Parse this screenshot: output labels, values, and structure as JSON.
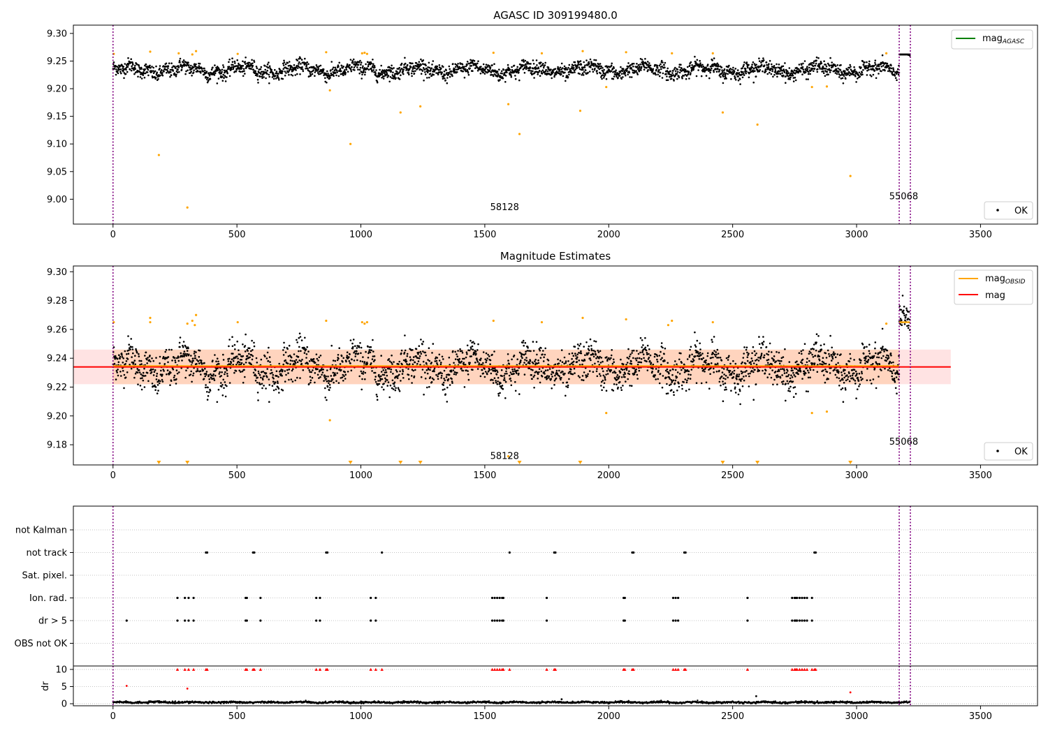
{
  "figure": {
    "legend_ok": "OK",
    "lim": {
      "xmin": -160,
      "xmax": 3730
    }
  },
  "colors": {
    "ok": "#000000",
    "out": "#ffa500",
    "agasc": "#008000",
    "obsid": "#ffa500",
    "mag": "#ff0000",
    "vline": "#800080",
    "band": "#ff9999",
    "band_inner": "#ffc8a0",
    "dr_flag": "#ff0000",
    "grid": "#b0b0b0"
  },
  "chart_data": [
    {
      "type": "scatter",
      "title": "AGASC ID 309199480.0",
      "xlabel": "",
      "ylabel": "",
      "xlim": [
        -160,
        3730
      ],
      "ylim": [
        8.955,
        9.315
      ],
      "xticks": [
        0,
        500,
        1000,
        1500,
        2000,
        2500,
        3000,
        3500
      ],
      "yticks": [
        9.0,
        9.05,
        9.1,
        9.15,
        9.2,
        9.25,
        9.3
      ],
      "ytick_labels": [
        "9.00",
        "9.05",
        "9.10",
        "9.15",
        "9.20",
        "9.25",
        "9.30"
      ],
      "grid": false,
      "legends": [
        "upper right: mag_AGASC",
        "lower right: OK"
      ],
      "legend_lines": [
        {
          "label": "mag",
          "sub": "AGASC",
          "color": "#008000"
        }
      ],
      "series_summary": {
        "name": "OK",
        "x_range": [
          0,
          3215
        ],
        "baseline": 9.234,
        "spread": 0.012
      },
      "annotations": [
        {
          "text": "58128",
          "x": 1580,
          "y": 8.98
        },
        {
          "text": "55068",
          "x": 3190,
          "y": 9.0
        }
      ],
      "vlines": [
        0,
        3172,
        3217
      ],
      "agasc_mag": 9.266,
      "outliers": [
        [
          3,
          9.263
        ],
        [
          150,
          9.267
        ],
        [
          185,
          9.08
        ],
        [
          265,
          9.264
        ],
        [
          300,
          8.985
        ],
        [
          320,
          9.262
        ],
        [
          335,
          9.268
        ],
        [
          503,
          9.263
        ],
        [
          860,
          9.266
        ],
        [
          875,
          9.197
        ],
        [
          958,
          9.1
        ],
        [
          1005,
          9.264
        ],
        [
          1015,
          9.265
        ],
        [
          1025,
          9.263
        ],
        [
          1160,
          9.157
        ],
        [
          1240,
          9.168
        ],
        [
          1535,
          9.265
        ],
        [
          1595,
          9.172
        ],
        [
          1640,
          9.118
        ],
        [
          1730,
          9.264
        ],
        [
          1885,
          9.16
        ],
        [
          1895,
          9.268
        ],
        [
          1990,
          9.203
        ],
        [
          2070,
          9.266
        ],
        [
          2255,
          9.264
        ],
        [
          2420,
          9.264
        ],
        [
          2460,
          9.157
        ],
        [
          2600,
          9.135
        ],
        [
          2820,
          9.203
        ],
        [
          2880,
          9.204
        ],
        [
          2975,
          9.042
        ],
        [
          3120,
          9.264
        ]
      ]
    },
    {
      "type": "scatter",
      "title": "Magnitude Estimates",
      "xlabel": "",
      "ylabel": "",
      "xlim": [
        -160,
        3730
      ],
      "ylim": [
        9.166,
        9.304
      ],
      "xticks": [
        0,
        500,
        1000,
        1500,
        2000,
        2500,
        3000,
        3500
      ],
      "yticks": [
        9.18,
        9.2,
        9.22,
        9.24,
        9.26,
        9.28,
        9.3
      ],
      "ytick_labels": [
        "9.18",
        "9.20",
        "9.22",
        "9.24",
        "9.26",
        "9.28",
        "9.30"
      ],
      "grid": false,
      "legends": [
        "upper right: mag_OBSID, mag",
        "lower right: OK"
      ],
      "legend_lines": [
        {
          "label": "mag",
          "sub": "OBSID",
          "color": "#ffa500"
        },
        {
          "label": "mag",
          "sub": "",
          "color": "#ff0000"
        }
      ],
      "series_summary": {
        "name": "OK",
        "x_range": [
          0,
          3215
        ],
        "baseline": 9.234,
        "spread": 0.012
      },
      "annotations": [
        {
          "text": "58128",
          "x": 1580,
          "y": 9.17
        },
        {
          "text": "55068",
          "x": 3190,
          "y": 9.18
        }
      ],
      "vlines": [
        0,
        3172,
        3217
      ],
      "mag_line": {
        "value": 9.234,
        "x_range": [
          -160,
          3380
        ]
      },
      "mag_band": {
        "low": 9.222,
        "high": 9.246,
        "x_range": [
          -160,
          3380
        ]
      },
      "mag_band_inner": {
        "low": 9.222,
        "high": 9.246,
        "x_range": [
          0,
          3172
        ]
      },
      "obsid_mag": {
        "value": 9.265,
        "x_range": [
          3172,
          3215
        ]
      },
      "outliers": [
        [
          3,
          9.265
        ],
        [
          150,
          9.268
        ],
        [
          150,
          9.265
        ],
        [
          300,
          9.264
        ],
        [
          320,
          9.266
        ],
        [
          335,
          9.27
        ],
        [
          330,
          9.263
        ],
        [
          503,
          9.265
        ],
        [
          860,
          9.266
        ],
        [
          875,
          9.197
        ],
        [
          1005,
          9.265
        ],
        [
          1015,
          9.264
        ],
        [
          1025,
          9.265
        ],
        [
          1535,
          9.266
        ],
        [
          1595,
          9.172
        ],
        [
          1730,
          9.265
        ],
        [
          1895,
          9.268
        ],
        [
          1990,
          9.202
        ],
        [
          2070,
          9.267
        ],
        [
          2255,
          9.266
        ],
        [
          2240,
          9.263
        ],
        [
          2420,
          9.265
        ],
        [
          2820,
          9.202
        ],
        [
          2880,
          9.203
        ],
        [
          3120,
          9.264
        ]
      ],
      "below_range_markers": [
        185,
        300,
        958,
        1160,
        1240,
        1640,
        1885,
        2460,
        2600,
        2975
      ]
    },
    {
      "type": "scatter",
      "title": "",
      "xlabel": "",
      "ylabel": "",
      "xlim": [
        -160,
        3730
      ],
      "categories": [
        "not Kalman",
        "not track",
        "Sat. pixel.",
        "Ion. rad.",
        "dr > 5",
        "OBS not OK"
      ],
      "grid": true,
      "vlines": [
        0,
        3172,
        3217
      ],
      "flags": {
        "not track": [
          375,
          380,
          565,
          570,
          860,
          865,
          1085,
          1600,
          1780,
          1785,
          2095,
          2100,
          2305,
          2310,
          2830,
          2835
        ],
        "Ion. rad.": [
          260,
          290,
          305,
          325,
          535,
          540,
          595,
          820,
          835,
          1040,
          1060,
          1530,
          1540,
          1550,
          1560,
          1570,
          1575,
          1750,
          2060,
          2065,
          2260,
          2270,
          2280,
          2560,
          2740,
          2750,
          2755,
          2760,
          2770,
          2780,
          2790,
          2800,
          2820
        ],
        "dr > 5": [
          55,
          260,
          290,
          305,
          325,
          535,
          540,
          595,
          820,
          835,
          1040,
          1060,
          1530,
          1540,
          1550,
          1560,
          1570,
          1575,
          1750,
          2060,
          2065,
          2260,
          2270,
          2280,
          2560,
          2740,
          2750,
          2755,
          2760,
          2770,
          2780,
          2790,
          2800,
          2820
        ]
      }
    },
    {
      "type": "scatter",
      "title": "",
      "xlabel": "",
      "ylabel": "dr",
      "xlim": [
        -160,
        3730
      ],
      "ylim": [
        -0.6,
        11
      ],
      "xticks": [
        0,
        500,
        1000,
        1500,
        2000,
        2500,
        3000,
        3500
      ],
      "yticks": [
        0,
        5,
        10
      ],
      "grid": true,
      "vlines": [
        0,
        3172,
        3217
      ],
      "series_summary": {
        "name": "dr",
        "x_range": [
          0,
          3215
        ],
        "typical": 0.4
      },
      "outliers": [
        [
          55,
          5.2
        ],
        [
          300,
          4.4
        ],
        [
          1810,
          1.3
        ],
        [
          2595,
          2.2
        ],
        [
          2975,
          3.3
        ]
      ],
      "clipped_at_10": [
        260,
        290,
        305,
        325,
        375,
        380,
        535,
        540,
        565,
        570,
        595,
        820,
        835,
        860,
        865,
        1040,
        1060,
        1085,
        1530,
        1540,
        1550,
        1560,
        1570,
        1575,
        1600,
        1750,
        1780,
        1785,
        2060,
        2065,
        2095,
        2100,
        2260,
        2270,
        2280,
        2305,
        2310,
        2560,
        2740,
        2750,
        2755,
        2760,
        2770,
        2780,
        2790,
        2800,
        2820,
        2830,
        2835
      ]
    }
  ]
}
